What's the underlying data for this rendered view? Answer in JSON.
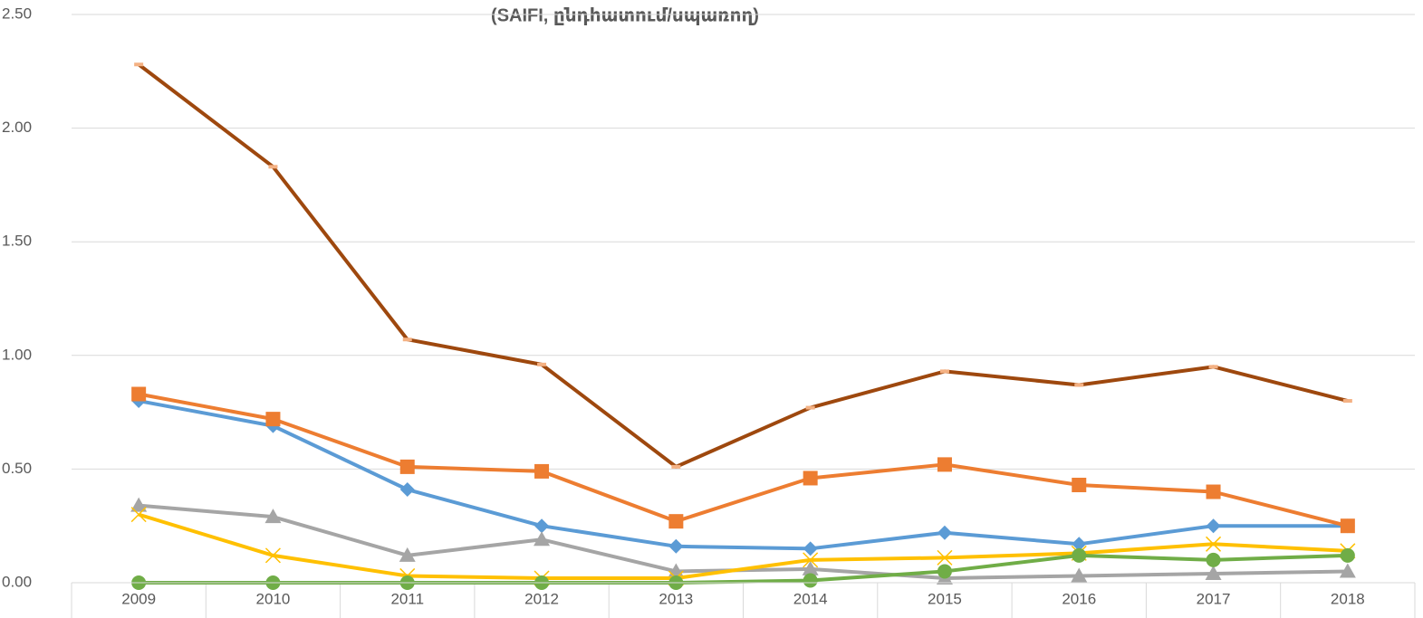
{
  "chart_data": {
    "type": "line",
    "title": "(SAIFI, ընդհատում/սպառող)",
    "categories": [
      "2009",
      "2010",
      "2011",
      "2012",
      "2013",
      "2014",
      "2015",
      "2016",
      "2017",
      "2018"
    ],
    "series": [
      {
        "color": "#5b9bd5",
        "marker": "diamond",
        "values": [
          0.8,
          0.69,
          0.41,
          0.25,
          0.16,
          0.15,
          0.22,
          0.17,
          0.25,
          0.25
        ]
      },
      {
        "color": "#ed7d31",
        "marker": "square",
        "values": [
          0.83,
          0.72,
          0.51,
          0.49,
          0.27,
          0.46,
          0.52,
          0.43,
          0.4,
          0.25
        ]
      },
      {
        "color": "#a5a5a5",
        "marker": "triangle",
        "values": [
          0.34,
          0.29,
          0.12,
          0.19,
          0.05,
          0.06,
          0.02,
          0.03,
          0.04,
          0.05
        ]
      },
      {
        "color": "#ffc000",
        "marker": "x",
        "values": [
          0.3,
          0.12,
          0.03,
          0.02,
          0.02,
          0.1,
          0.11,
          0.13,
          0.17,
          0.14
        ]
      },
      {
        "color": "#70ad47",
        "marker": "circle",
        "values": [
          0.0,
          0.0,
          0.0,
          0.0,
          0.0,
          0.01,
          0.05,
          0.12,
          0.1,
          0.12
        ]
      },
      {
        "color": "#9e480e",
        "marker": "dash",
        "values": [
          2.28,
          1.83,
          1.07,
          0.96,
          0.51,
          0.77,
          0.93,
          0.87,
          0.95,
          0.8
        ]
      }
    ],
    "ylim": [
      0,
      2.5
    ],
    "yticks": [
      {
        "value": 0,
        "label": "0.00"
      },
      {
        "value": 0.5,
        "label": "0.50"
      },
      {
        "value": 1,
        "label": "1.00"
      },
      {
        "value": 1.5,
        "label": "1.50"
      },
      {
        "value": 2,
        "label": "2.00"
      },
      {
        "value": 2.5,
        "label": "2.50"
      }
    ],
    "grid": true
  }
}
